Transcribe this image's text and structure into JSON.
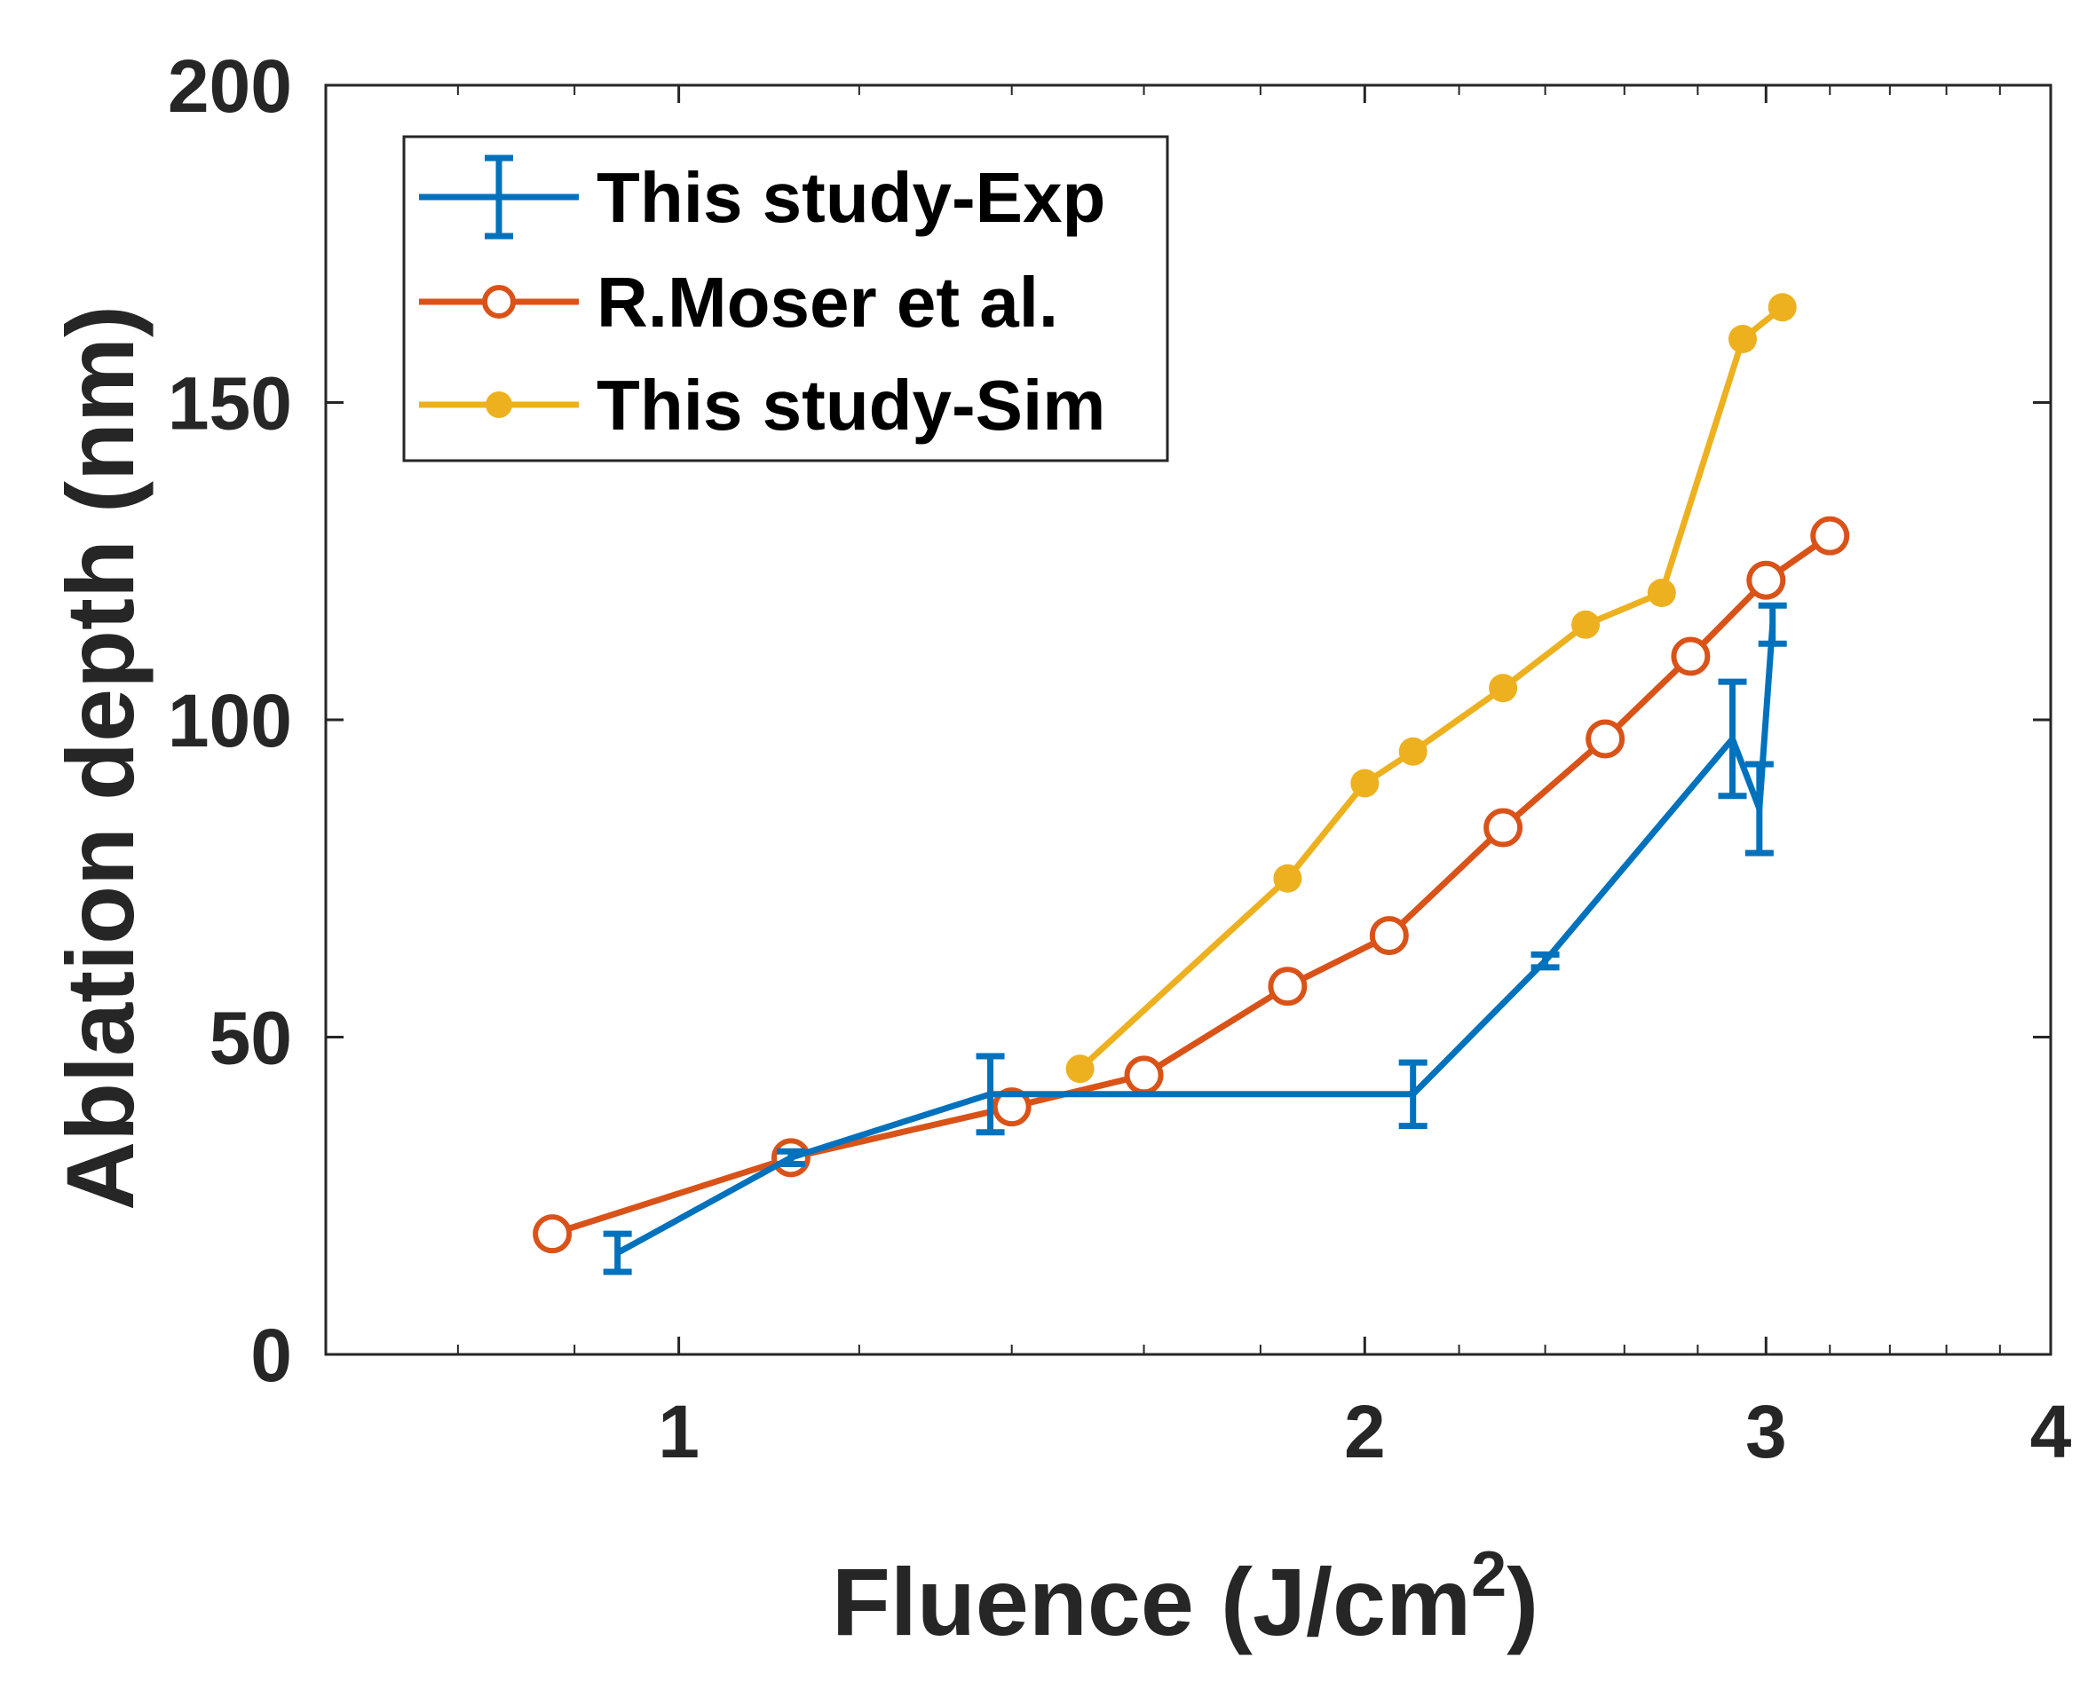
{
  "chart_data": {
    "type": "line",
    "xscale": "log",
    "xlim": [
      0.7,
      4
    ],
    "ylim": [
      0,
      200
    ],
    "xticks": [
      1,
      2,
      3,
      4
    ],
    "xtick_labels": [
      "1",
      "2",
      "3",
      "4"
    ],
    "yticks": [
      0,
      50,
      100,
      150,
      200
    ],
    "ytick_labels": [
      "0",
      "50",
      "100",
      "150",
      "200"
    ],
    "xlabel": "Fluence (J/cm",
    "xlabel_sup": "2",
    "xlabel_end": ")",
    "ylabel": "Ablation depth (nm)",
    "legend_position": "top-left",
    "series": [
      {
        "name": "This study-Exp",
        "color": "#0072BD",
        "marker": "errorbar",
        "x": [
          0.94,
          1.12,
          1.37,
          2.1,
          2.4,
          2.9,
          2.98,
          3.02
        ],
        "y": [
          16,
          31,
          41,
          41,
          62,
          97,
          86,
          115
        ],
        "err": [
          3,
          1,
          6,
          5,
          1,
          9,
          7,
          3
        ]
      },
      {
        "name": "R.Moser et al.",
        "color": "#D95319",
        "marker": "open-circle",
        "x": [
          0.88,
          1.12,
          1.4,
          1.6,
          1.85,
          2.05,
          2.3,
          2.55,
          2.78,
          3.0,
          3.2
        ],
        "y": [
          19,
          31,
          39,
          44,
          58,
          66,
          83,
          97,
          110,
          122,
          129
        ]
      },
      {
        "name": "This study-Sim",
        "color": "#EDB120",
        "marker": "filled-dot",
        "x": [
          1.5,
          1.85,
          2.0,
          2.1,
          2.3,
          2.5,
          2.7,
          2.93,
          3.05
        ],
        "y": [
          45,
          75,
          90,
          95,
          105,
          115,
          120,
          160,
          165
        ]
      }
    ]
  }
}
